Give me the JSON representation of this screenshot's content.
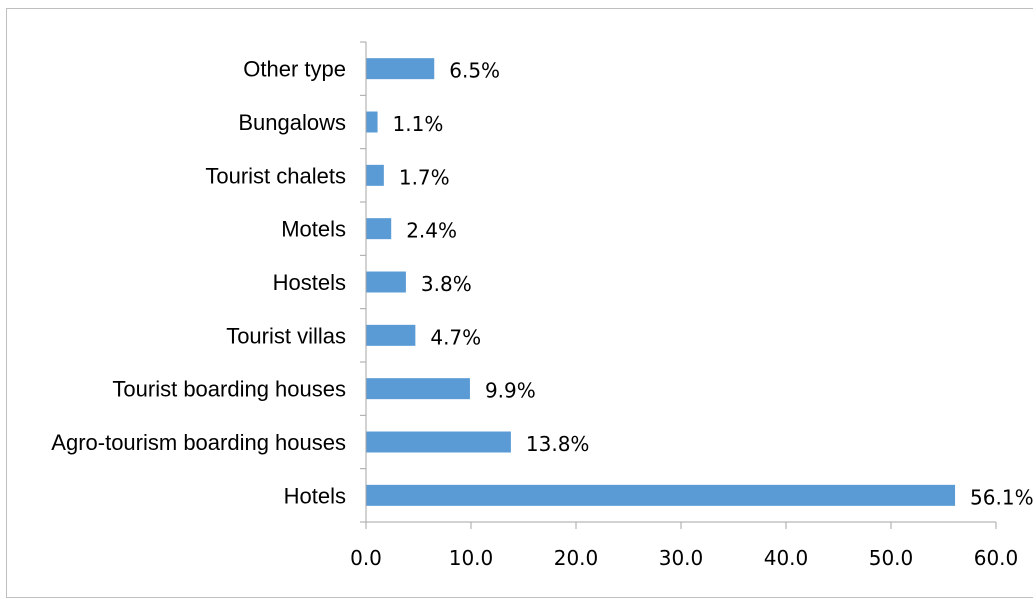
{
  "chart_data": {
    "type": "bar",
    "orientation": "horizontal",
    "categories": [
      "Other type",
      "Bungalows",
      "Tourist chalets",
      "Motels",
      "Hostels",
      "Tourist villas",
      "Tourist boarding houses",
      "Agro-tourism boarding houses",
      "Hotels"
    ],
    "values": [
      6.5,
      1.1,
      1.7,
      2.4,
      3.8,
      4.7,
      9.9,
      13.8,
      56.1
    ],
    "data_labels": [
      "6.5%",
      "1.1%",
      "1.7%",
      "2.4%",
      "3.8%",
      "4.7%",
      "9.9%",
      "13.8%",
      "56.1%"
    ],
    "xlim": [
      0,
      60
    ],
    "x_ticks": [
      0,
      10,
      20,
      30,
      40,
      50,
      60
    ],
    "x_tick_labels": [
      "0.0",
      "10.0",
      "20.0",
      "30.0",
      "40.0",
      "50.0",
      "60.0"
    ],
    "title": "",
    "xlabel": "",
    "ylabel": "",
    "grid": false,
    "legend": "none",
    "bar_color": "#5b9bd5",
    "axis_color": "#a6a6a6"
  }
}
